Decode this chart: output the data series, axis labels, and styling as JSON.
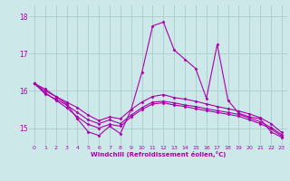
{
  "background_color": "#cce8e8",
  "grid_color": "#aacccc",
  "line_color": "#aa00aa",
  "xlabel": "Windchill (Refroidissement éolien,°C)",
  "xlim": [
    -0.5,
    23.5
  ],
  "ylim": [
    14.55,
    18.3
  ],
  "yticks": [
    15,
    16,
    17,
    18
  ],
  "xticks": [
    0,
    1,
    2,
    3,
    4,
    5,
    6,
    7,
    8,
    9,
    10,
    11,
    12,
    13,
    14,
    15,
    16,
    17,
    18,
    19,
    20,
    21,
    22,
    23
  ],
  "series1": [
    16.2,
    16.05,
    15.85,
    15.65,
    15.25,
    14.9,
    14.8,
    15.05,
    14.85,
    15.5,
    16.5,
    17.75,
    17.85,
    17.1,
    16.85,
    16.6,
    15.8,
    17.25,
    15.75,
    15.4,
    15.3,
    15.25,
    14.9,
    14.75
  ],
  "series2": [
    16.2,
    16.0,
    15.85,
    15.7,
    15.55,
    15.35,
    15.2,
    15.3,
    15.25,
    15.5,
    15.7,
    15.85,
    15.9,
    15.82,
    15.78,
    15.72,
    15.65,
    15.58,
    15.52,
    15.46,
    15.38,
    15.28,
    15.12,
    14.88
  ],
  "series3": [
    16.2,
    15.95,
    15.75,
    15.55,
    15.3,
    15.1,
    15.0,
    15.1,
    15.05,
    15.3,
    15.5,
    15.65,
    15.68,
    15.62,
    15.58,
    15.52,
    15.47,
    15.42,
    15.37,
    15.32,
    15.22,
    15.12,
    14.98,
    14.78
  ],
  "series4": [
    16.2,
    15.92,
    15.78,
    15.62,
    15.42,
    15.22,
    15.12,
    15.22,
    15.12,
    15.35,
    15.55,
    15.7,
    15.72,
    15.68,
    15.62,
    15.58,
    15.52,
    15.47,
    15.42,
    15.37,
    15.27,
    15.17,
    15.02,
    14.82
  ]
}
